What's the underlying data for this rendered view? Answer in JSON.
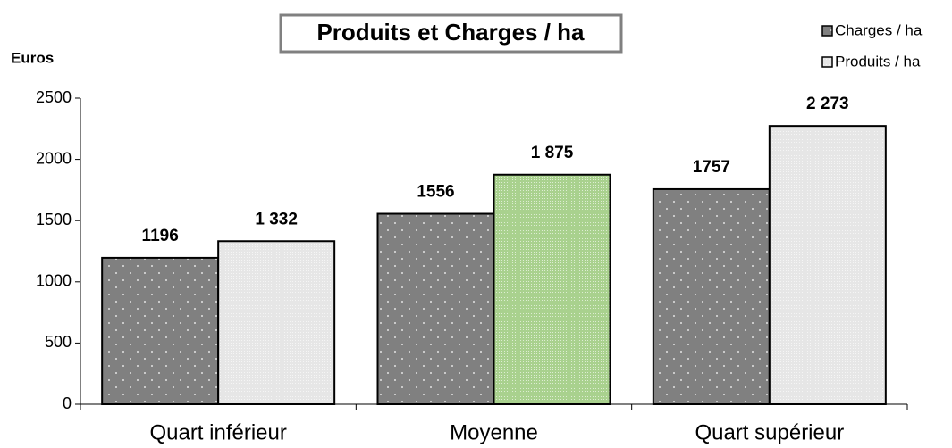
{
  "chart_data": {
    "type": "bar",
    "title": "Produits et Charges / ha",
    "y_label": "Euros",
    "categories": [
      "Quart inférieur",
      "Moyenne",
      "Quart supérieur"
    ],
    "series": [
      {
        "name": "Charges / ha",
        "color": "#808080",
        "colors": [
          "#808080",
          "#808080",
          "#808080"
        ],
        "values": [
          1196,
          1556,
          1757
        ]
      },
      {
        "name": "Produits / ha",
        "color": "#e6e6e6",
        "colors": [
          "#e6e6e6",
          "#a9d18e",
          "#e6e6e6"
        ],
        "values": [
          1332,
          1875,
          2273
        ],
        "value_labels": [
          "1 332",
          "1 875",
          "2 273"
        ]
      }
    ],
    "ylim": [
      0,
      2500
    ],
    "yticks": [
      0,
      500,
      1000,
      1500,
      2000,
      2500
    ],
    "grid": false,
    "legend": "upper right"
  }
}
